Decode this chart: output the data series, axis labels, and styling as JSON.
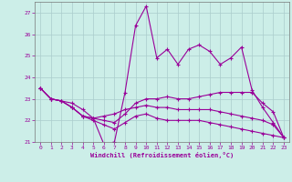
{
  "xlabel": "Windchill (Refroidissement éolien,°C)",
  "background_color": "#cceee8",
  "grid_color": "#aacccc",
  "line_color": "#990099",
  "ylim": [
    21.0,
    27.5
  ],
  "xlim": [
    -0.5,
    23.5
  ],
  "yticks": [
    21,
    22,
    23,
    24,
    25,
    26,
    27
  ],
  "xticks": [
    0,
    1,
    2,
    3,
    4,
    5,
    6,
    7,
    8,
    9,
    10,
    11,
    12,
    13,
    14,
    15,
    16,
    17,
    18,
    19,
    20,
    21,
    22,
    23
  ],
  "series1_x": [
    0,
    1,
    3,
    4,
    5,
    6,
    7,
    8,
    9,
    10,
    11,
    12,
    13,
    14,
    15,
    16,
    17,
    18,
    19,
    20,
    21,
    22,
    23
  ],
  "series1_y": [
    23.5,
    23.0,
    22.8,
    22.5,
    22.1,
    20.9,
    21.0,
    23.3,
    26.4,
    27.3,
    24.9,
    25.3,
    24.6,
    25.3,
    25.5,
    25.2,
    24.6,
    24.9,
    25.4,
    23.4,
    22.6,
    21.9,
    21.2
  ],
  "series2": [
    23.5,
    23.0,
    22.9,
    22.6,
    22.2,
    22.1,
    22.0,
    21.9,
    22.3,
    22.8,
    23.0,
    23.0,
    23.1,
    23.0,
    23.0,
    23.1,
    23.2,
    23.3,
    23.3,
    23.3,
    23.3,
    22.8,
    22.4,
    21.2
  ],
  "series3": [
    23.5,
    23.0,
    22.9,
    22.6,
    22.2,
    22.1,
    22.2,
    22.3,
    22.5,
    22.6,
    22.7,
    22.6,
    22.6,
    22.5,
    22.5,
    22.5,
    22.5,
    22.4,
    22.3,
    22.2,
    22.1,
    22.0,
    21.8,
    21.2
  ],
  "series4": [
    23.5,
    23.0,
    22.9,
    22.6,
    22.2,
    22.0,
    21.8,
    21.6,
    21.9,
    22.2,
    22.3,
    22.1,
    22.0,
    22.0,
    22.0,
    22.0,
    21.9,
    21.8,
    21.7,
    21.6,
    21.5,
    21.4,
    21.3,
    21.2
  ]
}
